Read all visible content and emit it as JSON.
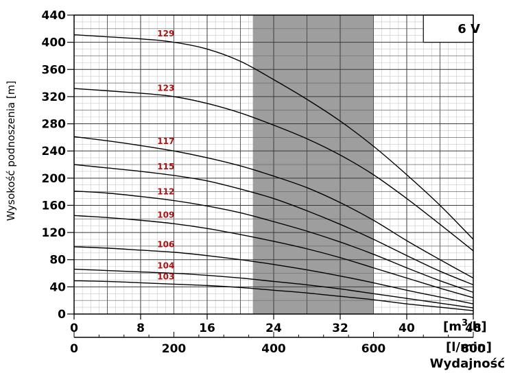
{
  "chart_data": {
    "type": "line",
    "ylabel": "Wysokość podnoszenia [m]",
    "xlabel": "Wydajność",
    "x_unit_primary": "[m3/h]",
    "x_unit_secondary": "[l/min]",
    "xlim": [
      0,
      48
    ],
    "ylim": [
      0,
      440
    ],
    "x_ticks": [
      0,
      8,
      16,
      24,
      32,
      40,
      48
    ],
    "x_ticks_secondary": [
      0,
      200,
      400,
      600,
      800
    ],
    "y_ticks": [
      0,
      40,
      80,
      120,
      160,
      200,
      240,
      280,
      320,
      360,
      400,
      440
    ],
    "badge": "6 V",
    "shaded_range": [
      21.5,
      36
    ],
    "grid": true,
    "series": [
      {
        "name": "129",
        "x": [
          0,
          8,
          12,
          16,
          20,
          24,
          28,
          32,
          36,
          40,
          44,
          48
        ],
        "values": [
          411,
          405,
          400,
          390,
          372,
          345,
          316,
          284,
          247,
          205,
          160,
          110
        ]
      },
      {
        "name": "123",
        "x": [
          0,
          8,
          12,
          16,
          20,
          24,
          28,
          32,
          36,
          40,
          44,
          48
        ],
        "values": [
          332,
          325,
          320,
          310,
          296,
          278,
          258,
          234,
          205,
          170,
          132,
          93
        ]
      },
      {
        "name": "117",
        "x": [
          0,
          4,
          8,
          12,
          16,
          20,
          24,
          28,
          32,
          36,
          40,
          44,
          48
        ],
        "values": [
          261,
          255,
          248,
          240,
          230,
          218,
          203,
          186,
          164,
          138,
          108,
          80,
          53
        ]
      },
      {
        "name": "115",
        "x": [
          0,
          4,
          8,
          12,
          16,
          20,
          24,
          28,
          32,
          36,
          40,
          44,
          48
        ],
        "values": [
          220,
          215,
          210,
          204,
          196,
          184,
          170,
          152,
          132,
          110,
          86,
          63,
          43
        ]
      },
      {
        "name": "112",
        "x": [
          0,
          4,
          8,
          12,
          16,
          20,
          24,
          28,
          32,
          36,
          40,
          44,
          48
        ],
        "values": [
          181,
          178,
          173,
          167,
          159,
          149,
          136,
          122,
          106,
          88,
          68,
          49,
          32
        ]
      },
      {
        "name": "109",
        "x": [
          0,
          4,
          8,
          12,
          16,
          20,
          24,
          28,
          32,
          36,
          40,
          44,
          48
        ],
        "values": [
          145,
          142,
          138,
          133,
          126,
          117,
          107,
          96,
          83,
          68,
          53,
          38,
          24
        ]
      },
      {
        "name": "106",
        "x": [
          0,
          4,
          8,
          12,
          16,
          20,
          24,
          28,
          32,
          36,
          40,
          44,
          48
        ],
        "values": [
          99,
          97,
          94,
          91,
          86,
          80,
          73,
          65,
          56,
          46,
          35,
          25,
          15
        ]
      },
      {
        "name": "104",
        "x": [
          0,
          4,
          8,
          12,
          16,
          20,
          24,
          28,
          32,
          36,
          40,
          44,
          48
        ],
        "values": [
          66,
          64,
          62,
          60,
          57,
          53,
          48,
          43,
          37,
          30,
          23,
          16,
          9
        ]
      },
      {
        "name": "103",
        "x": [
          0,
          4,
          8,
          12,
          16,
          20,
          24,
          28,
          32,
          36,
          40,
          44,
          48
        ],
        "values": [
          49,
          48,
          46,
          44,
          42,
          39,
          35,
          31,
          26,
          21,
          15,
          10,
          5
        ]
      }
    ]
  }
}
